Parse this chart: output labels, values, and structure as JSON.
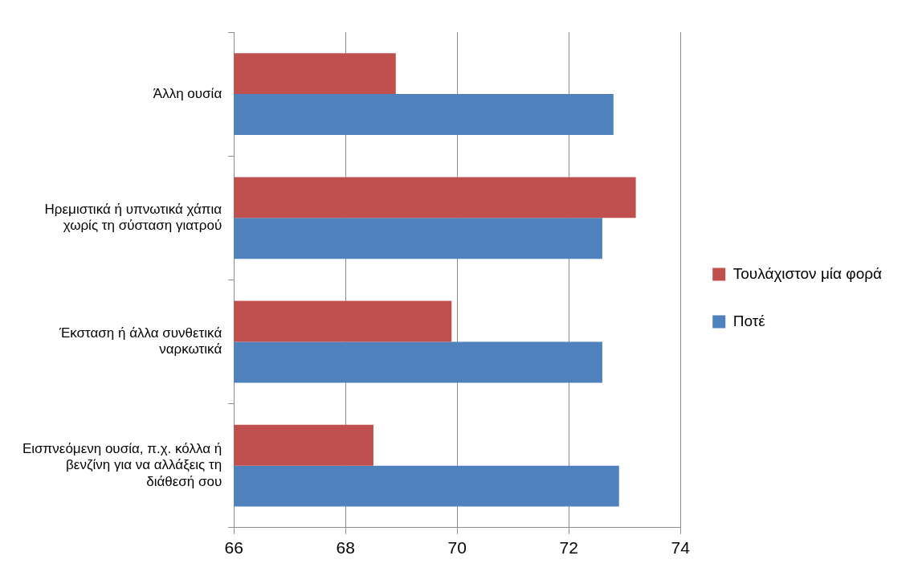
{
  "chart_data": {
    "type": "bar",
    "orientation": "horizontal",
    "categories": [
      "Άλλη ουσία",
      "Ηρεμιστικά ή υπνωτικά χάπια χωρίς τη σύσταση γιατρού",
      "Έκσταση ή άλλα συνθετικά ναρκωτικά",
      "Εισπνεόμενη ουσία, π.χ. κόλλα ή βενζίνη για να αλλάξεις τη διάθεσή σου"
    ],
    "series": [
      {
        "name": "Τουλάχιστον μία φορά",
        "color": "#c0504d",
        "values": [
          68.9,
          73.2,
          69.9,
          68.5
        ]
      },
      {
        "name": "Ποτέ",
        "color": "#4f81bd",
        "values": [
          72.8,
          72.6,
          72.6,
          72.9
        ]
      }
    ],
    "xlim": [
      66,
      74
    ],
    "xticks": [
      66,
      68,
      70,
      72,
      74
    ],
    "grid": "x",
    "legend": "right"
  }
}
